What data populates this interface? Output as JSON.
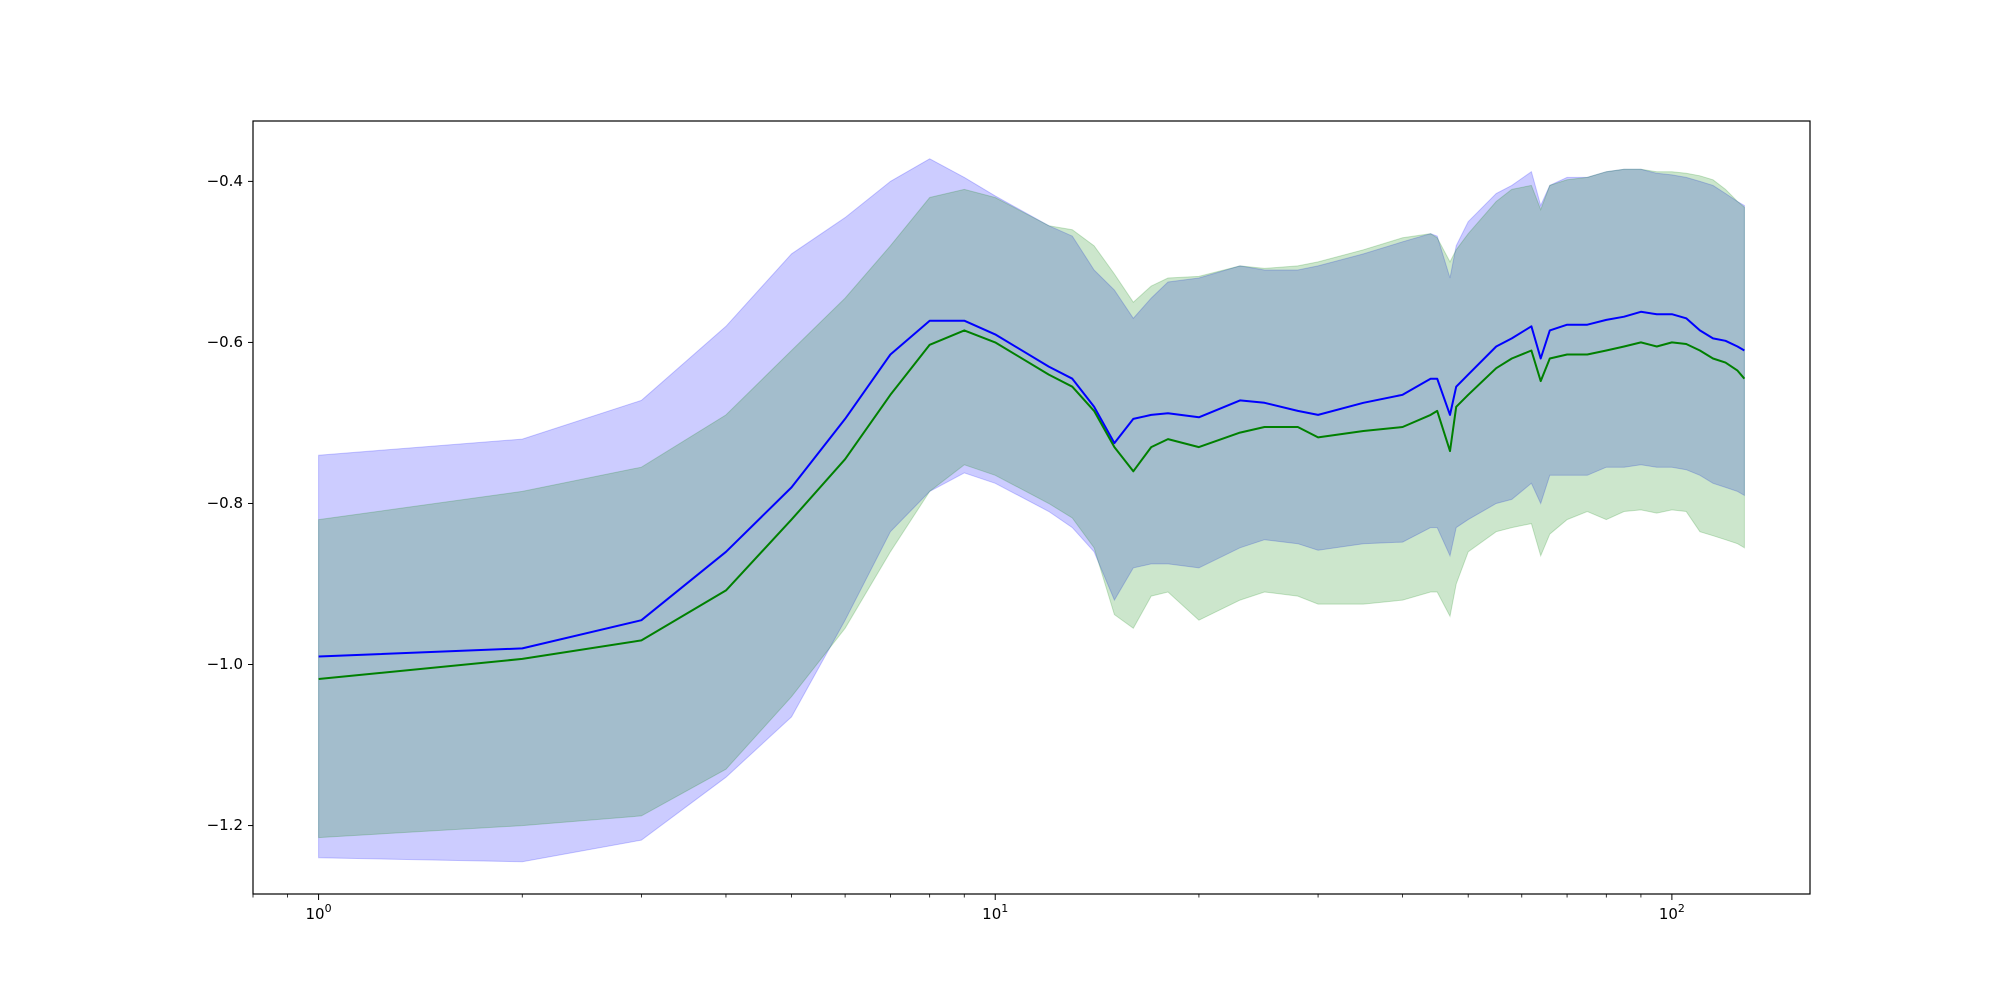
{
  "chart_data": {
    "type": "line",
    "title": "",
    "xlabel": "",
    "ylabel": "",
    "xscale": "log",
    "xlim": [
      0.8,
      160
    ],
    "ylim": [
      -1.285,
      -0.325
    ],
    "grid": false,
    "legend": null,
    "x_ticks": [
      {
        "value": 1,
        "base": "10",
        "exp": "0"
      },
      {
        "value": 10,
        "base": "10",
        "exp": "1"
      },
      {
        "value": 100,
        "base": "10",
        "exp": "2"
      }
    ],
    "y_ticks": [
      {
        "value": -0.4,
        "label": "−0.4"
      },
      {
        "value": -0.6,
        "label": "−0.6"
      },
      {
        "value": -0.8,
        "label": "−0.8"
      },
      {
        "value": -1.0,
        "label": "−1.0"
      },
      {
        "value": -1.2,
        "label": "−1.2"
      }
    ],
    "series": [
      {
        "color": "#0000ff",
        "band_color": "#0000ff",
        "band_opacity": 0.2,
        "x": [
          1,
          2,
          3,
          4,
          5,
          6,
          7,
          8,
          9,
          10,
          12,
          13,
          14,
          15,
          16,
          17,
          18,
          20,
          23,
          25,
          28,
          30,
          35,
          40,
          44,
          45,
          47,
          48,
          50,
          55,
          58,
          62,
          64,
          66,
          70,
          75,
          80,
          85,
          90,
          95,
          100,
          105,
          110,
          115,
          120,
          125,
          128
        ],
        "mean": [
          -0.99,
          -0.98,
          -0.945,
          -0.86,
          -0.78,
          -0.695,
          -0.615,
          -0.573,
          -0.573,
          -0.59,
          -0.63,
          -0.645,
          -0.68,
          -0.725,
          -0.695,
          -0.69,
          -0.688,
          -0.693,
          -0.672,
          -0.675,
          -0.685,
          -0.69,
          -0.675,
          -0.665,
          -0.645,
          -0.645,
          -0.69,
          -0.655,
          -0.64,
          -0.605,
          -0.595,
          -0.58,
          -0.62,
          -0.585,
          -0.578,
          -0.578,
          -0.572,
          -0.568,
          -0.562,
          -0.565,
          -0.565,
          -0.57,
          -0.585,
          -0.595,
          -0.598,
          -0.605,
          -0.61
        ],
        "upper": [
          -0.74,
          -0.72,
          -0.672,
          -0.58,
          -0.49,
          -0.445,
          -0.4,
          -0.372,
          -0.395,
          -0.418,
          -0.455,
          -0.468,
          -0.51,
          -0.535,
          -0.57,
          -0.545,
          -0.525,
          -0.52,
          -0.505,
          -0.51,
          -0.51,
          -0.505,
          -0.49,
          -0.475,
          -0.465,
          -0.468,
          -0.52,
          -0.48,
          -0.45,
          -0.415,
          -0.405,
          -0.388,
          -0.43,
          -0.405,
          -0.395,
          -0.395,
          -0.388,
          -0.385,
          -0.385,
          -0.39,
          -0.392,
          -0.395,
          -0.4,
          -0.405,
          -0.415,
          -0.425,
          -0.43
        ],
        "lower": [
          -1.24,
          -1.245,
          -1.218,
          -1.14,
          -1.065,
          -0.945,
          -0.835,
          -0.785,
          -0.762,
          -0.775,
          -0.81,
          -0.83,
          -0.86,
          -0.92,
          -0.88,
          -0.875,
          -0.875,
          -0.88,
          -0.855,
          -0.845,
          -0.85,
          -0.858,
          -0.85,
          -0.848,
          -0.83,
          -0.83,
          -0.865,
          -0.83,
          -0.82,
          -0.8,
          -0.795,
          -0.775,
          -0.8,
          -0.765,
          -0.765,
          -0.765,
          -0.755,
          -0.755,
          -0.752,
          -0.755,
          -0.755,
          -0.758,
          -0.765,
          -0.775,
          -0.78,
          -0.785,
          -0.79
        ]
      },
      {
        "color": "#008000",
        "band_color": "#008000",
        "band_opacity": 0.2,
        "x": [
          1,
          2,
          3,
          4,
          5,
          6,
          7,
          8,
          9,
          10,
          12,
          13,
          14,
          15,
          16,
          17,
          18,
          20,
          23,
          25,
          28,
          30,
          35,
          40,
          44,
          45,
          47,
          48,
          50,
          55,
          58,
          62,
          64,
          66,
          70,
          75,
          80,
          85,
          90,
          95,
          100,
          105,
          110,
          115,
          120,
          125,
          128
        ],
        "mean": [
          -1.018,
          -0.993,
          -0.97,
          -0.908,
          -0.82,
          -0.745,
          -0.665,
          -0.603,
          -0.585,
          -0.6,
          -0.64,
          -0.655,
          -0.685,
          -0.73,
          -0.76,
          -0.73,
          -0.72,
          -0.73,
          -0.712,
          -0.705,
          -0.705,
          -0.718,
          -0.71,
          -0.705,
          -0.69,
          -0.685,
          -0.735,
          -0.68,
          -0.665,
          -0.632,
          -0.62,
          -0.61,
          -0.648,
          -0.62,
          -0.615,
          -0.615,
          -0.61,
          -0.605,
          -0.6,
          -0.605,
          -0.6,
          -0.602,
          -0.61,
          -0.62,
          -0.625,
          -0.635,
          -0.645
        ],
        "upper": [
          -0.82,
          -0.785,
          -0.755,
          -0.69,
          -0.61,
          -0.545,
          -0.48,
          -0.42,
          -0.41,
          -0.42,
          -0.455,
          -0.46,
          -0.48,
          -0.515,
          -0.55,
          -0.53,
          -0.52,
          -0.518,
          -0.505,
          -0.508,
          -0.505,
          -0.5,
          -0.485,
          -0.47,
          -0.465,
          -0.47,
          -0.5,
          -0.485,
          -0.465,
          -0.425,
          -0.41,
          -0.405,
          -0.435,
          -0.405,
          -0.398,
          -0.395,
          -0.388,
          -0.385,
          -0.385,
          -0.388,
          -0.388,
          -0.39,
          -0.393,
          -0.398,
          -0.41,
          -0.425,
          -0.432
        ],
        "lower": [
          -1.215,
          -1.2,
          -1.188,
          -1.13,
          -1.04,
          -0.955,
          -0.86,
          -0.785,
          -0.752,
          -0.765,
          -0.8,
          -0.818,
          -0.855,
          -0.938,
          -0.955,
          -0.915,
          -0.91,
          -0.945,
          -0.92,
          -0.91,
          -0.915,
          -0.925,
          -0.925,
          -0.92,
          -0.91,
          -0.91,
          -0.94,
          -0.9,
          -0.86,
          -0.835,
          -0.83,
          -0.825,
          -0.865,
          -0.838,
          -0.82,
          -0.81,
          -0.82,
          -0.81,
          -0.808,
          -0.812,
          -0.808,
          -0.81,
          -0.835,
          -0.84,
          -0.845,
          -0.85,
          -0.855
        ]
      }
    ]
  }
}
